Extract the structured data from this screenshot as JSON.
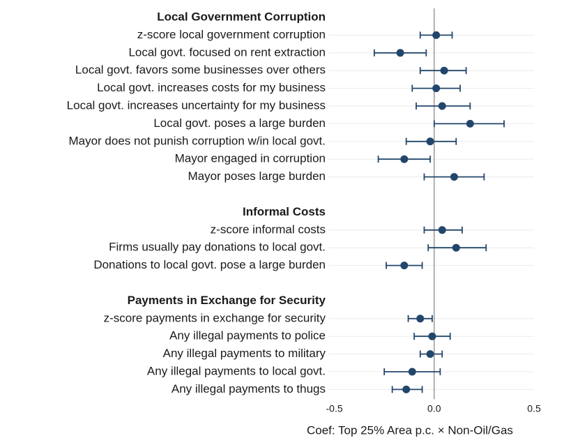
{
  "chart_data": {
    "type": "coefplot",
    "groups": [
      {
        "name": "Local Government Corruption",
        "categories": [
          "z-score local government corruption",
          "Local govt. focused on rent extraction",
          "Local govt. favors some businesses over others",
          "Local govt. increases costs for my business",
          "Local govt. increases uncertainty for my business",
          "Local govt. poses a large burden",
          "Mayor does not punish corruption w/in local govt.",
          "Mayor engaged in corruption",
          "Mayor poses large burden"
        ],
        "values": [
          0.01,
          -0.17,
          0.05,
          0.01,
          0.04,
          0.18,
          -0.02,
          -0.15,
          0.1
        ],
        "lower": [
          -0.07,
          -0.3,
          -0.07,
          -0.11,
          -0.09,
          0.0,
          -0.14,
          -0.28,
          -0.05
        ],
        "upper": [
          0.09,
          -0.04,
          0.16,
          0.13,
          0.18,
          0.35,
          0.11,
          -0.02,
          0.25
        ]
      },
      {
        "name": "Informal Costs",
        "categories": [
          "z-score informal costs",
          "Firms usually pay donations to local govt.",
          "Donations to local govt. pose a large burden"
        ],
        "values": [
          0.04,
          0.11,
          -0.15
        ],
        "lower": [
          -0.05,
          -0.03,
          -0.24
        ],
        "upper": [
          0.14,
          0.26,
          -0.06
        ]
      },
      {
        "name": "Payments in Exchange for Security",
        "categories": [
          "z-score payments in exchange for security",
          "Any illegal payments to police",
          "Any illegal payments to military",
          "Any illegal payments to local govt.",
          "Any illegal payments to thugs"
        ],
        "values": [
          -0.07,
          -0.01,
          -0.02,
          -0.11,
          -0.14
        ],
        "lower": [
          -0.13,
          -0.1,
          -0.07,
          -0.25,
          -0.21
        ],
        "upper": [
          -0.01,
          0.08,
          0.04,
          0.03,
          -0.06
        ]
      }
    ],
    "xlabel": "Coef: Top 25% Area p.c. × Non-Oil/Gas",
    "xlim": [
      -0.53,
      0.5
    ],
    "xticks": [
      -0.5,
      {
        "value": 0,
        "label": "0.0"
      },
      0.5
    ],
    "color": "#22466b",
    "grid": true
  }
}
